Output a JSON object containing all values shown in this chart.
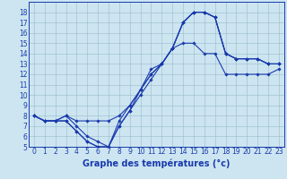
{
  "xlabel": "Graphe des températures (°c)",
  "hours": [
    0,
    1,
    2,
    3,
    4,
    5,
    6,
    7,
    8,
    9,
    10,
    11,
    12,
    13,
    14,
    15,
    16,
    17,
    18,
    19,
    20,
    21,
    22,
    23
  ],
  "series": [
    [
      8.0,
      7.5,
      7.5,
      8.0,
      7.5,
      7.5,
      7.5,
      7.5,
      8.0,
      9.0,
      10.5,
      12.5,
      13.0,
      14.5,
      17.0,
      18.0,
      18.0,
      17.5,
      14.0,
      13.5,
      13.5,
      13.5,
      13.0,
      13.0
    ],
    [
      8.0,
      7.5,
      7.5,
      7.5,
      6.5,
      5.5,
      5.0,
      5.0,
      7.0,
      8.5,
      10.0,
      11.5,
      13.0,
      14.5,
      17.0,
      18.0,
      18.0,
      17.5,
      14.0,
      13.5,
      13.5,
      13.5,
      13.0,
      13.0
    ],
    [
      8.0,
      7.5,
      7.5,
      7.5,
      6.5,
      5.5,
      5.0,
      5.0,
      7.0,
      8.5,
      10.5,
      12.0,
      13.0,
      14.5,
      17.0,
      18.0,
      18.0,
      17.5,
      14.0,
      13.5,
      13.5,
      13.5,
      13.0,
      13.0
    ],
    [
      8.0,
      7.5,
      7.5,
      8.0,
      7.0,
      6.0,
      5.5,
      5.0,
      7.5,
      9.0,
      10.5,
      12.0,
      13.0,
      14.5,
      15.0,
      15.0,
      14.0,
      14.0,
      12.0,
      12.0,
      12.0,
      12.0,
      12.0,
      12.5
    ]
  ],
  "line_color": "#1a3aad",
  "marker": "D",
  "marker_size": 1.8,
  "line_width": 0.8,
  "bg_color": "#cce5f0",
  "grid_color": "#99bbcc",
  "ylim": [
    5,
    19
  ],
  "yticks": [
    5,
    6,
    7,
    8,
    9,
    10,
    11,
    12,
    13,
    14,
    15,
    16,
    17,
    18
  ],
  "xlim": [
    -0.5,
    23.5
  ],
  "xlabel_fontsize": 7.0,
  "tick_fontsize": 5.5,
  "label_color": "#1a3aad"
}
